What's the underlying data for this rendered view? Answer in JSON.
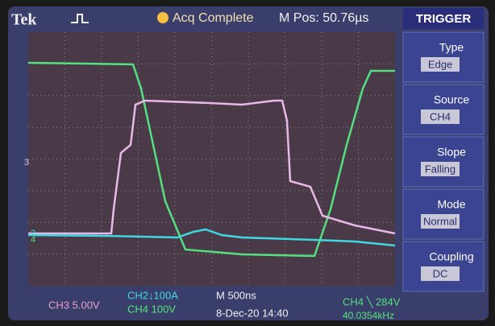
{
  "header": {
    "brand": "Tek",
    "status": "Acq Complete",
    "position": "M Pos: 50.76µs"
  },
  "trigger_menu": {
    "title": "TRIGGER",
    "items": [
      {
        "label": "Type",
        "value": "Edge"
      },
      {
        "label": "Source",
        "value": "CH4"
      },
      {
        "label": "Slope",
        "value": "Falling"
      },
      {
        "label": "Mode",
        "value": "Normal"
      },
      {
        "label": "Coupling",
        "value": "DC"
      }
    ]
  },
  "channel_markers": [
    "3",
    "2",
    "4"
  ],
  "footer": {
    "ch3": "CH3 5.00V",
    "ch2": "CH2↓100A",
    "ch4": "CH4 100V",
    "timebase": "M 500ns",
    "date": "8-Dec-20 14:40",
    "trigger": "CH4 ╲ 284V",
    "frequency": "40.0354kHz"
  }
}
